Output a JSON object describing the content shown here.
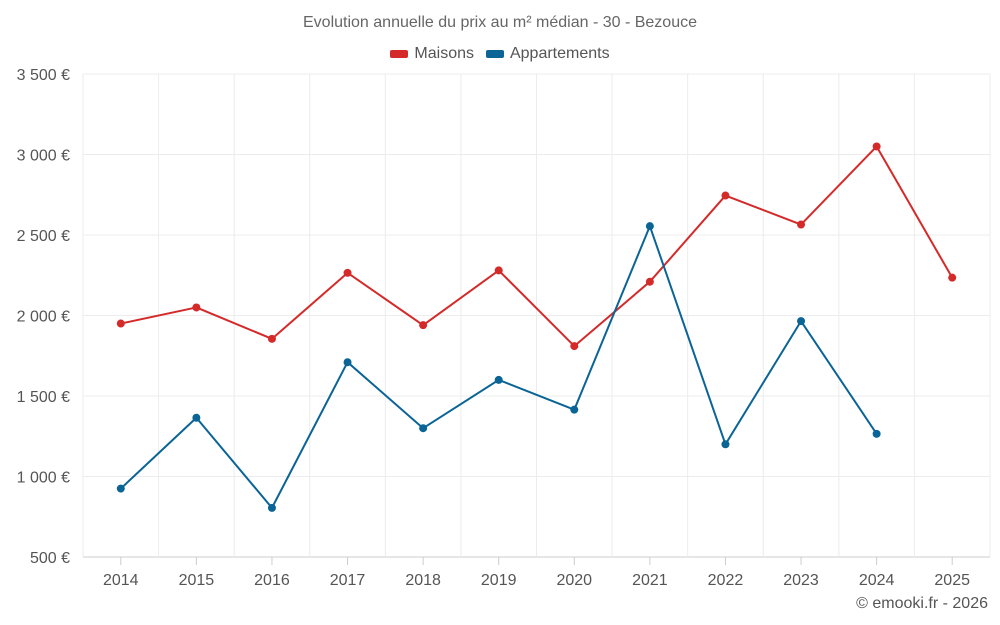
{
  "chart_data": {
    "type": "line",
    "title": "Evolution annuelle du prix au m² médian - 30 - Bezouce",
    "categories": [
      "2014",
      "2015",
      "2016",
      "2017",
      "2018",
      "2019",
      "2020",
      "2021",
      "2022",
      "2023",
      "2024",
      "2025"
    ],
    "y_ticks": [
      "500 €",
      "1 000 €",
      "1 500 €",
      "2 000 €",
      "2 500 €",
      "3 000 €",
      "3 500 €"
    ],
    "y_tick_values": [
      500,
      1000,
      1500,
      2000,
      2500,
      3000,
      3500
    ],
    "ylim": [
      500,
      3500
    ],
    "grid": true,
    "legend_position": "top-center",
    "series": [
      {
        "name": "Maisons",
        "color": "#d42a2a",
        "values": [
          1950,
          2050,
          1855,
          2265,
          1940,
          2280,
          1810,
          2210,
          2745,
          2565,
          3050,
          2235
        ]
      },
      {
        "name": "Appartements",
        "color": "#0a6496",
        "values": [
          925,
          1365,
          805,
          1710,
          1300,
          1600,
          1415,
          2555,
          1200,
          1965,
          1265,
          null
        ]
      }
    ],
    "credit": "© emooki.fr - 2026"
  }
}
